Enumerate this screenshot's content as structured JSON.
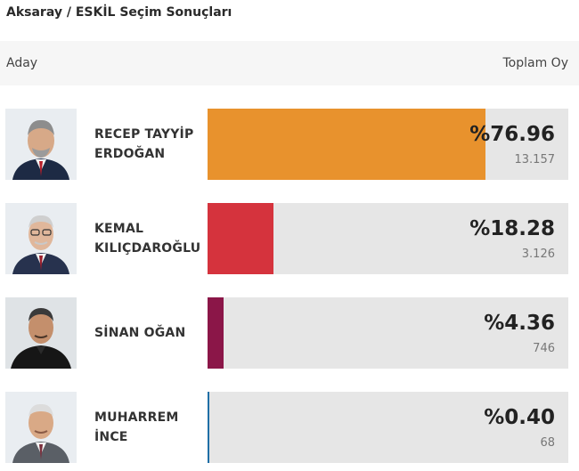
{
  "page": {
    "title": "Aksaray / ESKİL Seçim Sonuçları"
  },
  "table": {
    "col_candidate": "Aday",
    "col_total": "Toplam Oy"
  },
  "candidates": [
    {
      "name_line1": "RECEP TAYYİP",
      "name_line2": "ERDOĞAN",
      "percent_label": "%76.96",
      "percent": 76.96,
      "votes": "13.157",
      "color": "#e8922d"
    },
    {
      "name_line1": "KEMAL",
      "name_line2": "KILIÇDAROĞLU",
      "percent_label": "%18.28",
      "percent": 18.28,
      "votes": "3.126",
      "color": "#d5333d"
    },
    {
      "name_line1": "SİNAN OĞAN",
      "name_line2": "",
      "percent_label": "%4.36",
      "percent": 4.36,
      "votes": "746",
      "color": "#8b1648"
    },
    {
      "name_line1": "MUHARREM",
      "name_line2": "İNCE",
      "percent_label": "%0.40",
      "percent": 0.4,
      "votes": "68",
      "color": "#1f6fa6"
    }
  ]
}
